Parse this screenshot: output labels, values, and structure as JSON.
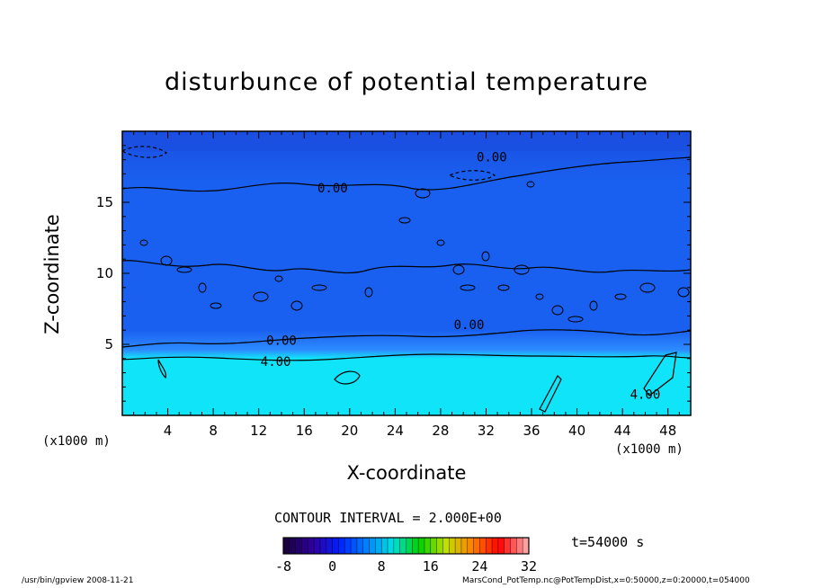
{
  "chart_data": {
    "type": "heatmap",
    "title": "disturbunce of potential temperature",
    "xlabel": "X-coordinate",
    "ylabel": "Z-coordinate",
    "x_unit_left": "(x1000 m)",
    "x_unit_right": "(x1000 m)",
    "xlim": [
      0,
      50
    ],
    "ylim": [
      0,
      20
    ],
    "x_ticks": [
      4,
      8,
      12,
      16,
      20,
      24,
      28,
      32,
      36,
      40,
      44,
      48
    ],
    "y_ticks": [
      5,
      10,
      15
    ],
    "contour_interval_text": "CONTOUR INTERVAL = 2.000E+00",
    "contour_labels": [
      {
        "text": "0.00",
        "x": 32.5,
        "z": 18.2
      },
      {
        "text": "0.00",
        "x": 18.5,
        "z": 16.0
      },
      {
        "text": "0.00",
        "x": 30.5,
        "z": 6.4
      },
      {
        "text": "0.00",
        "x": 14.0,
        "z": 5.3
      },
      {
        "text": "4.00",
        "x": 13.5,
        "z": 3.8
      },
      {
        "text": "4.00",
        "x": 46.0,
        "z": 1.5
      }
    ],
    "colorbar": {
      "min": -8,
      "max": 32,
      "tick_labels": [
        "-8",
        "0",
        "8",
        "16",
        "24",
        "32"
      ],
      "colors": [
        "#1a0040",
        "#3000a0",
        "#0020ff",
        "#0080ff",
        "#00e0e0",
        "#00d000",
        "#c0e000",
        "#ff8000",
        "#ff0000",
        "#ffa0a0"
      ]
    },
    "field_colors": {
      "upper_band": "#1a4ee0",
      "middle": "#1a60f0",
      "lower_layer": "#2d8cff",
      "near_surface": "#10e4f8"
    },
    "time_text": "t=54000 s"
  },
  "footer": {
    "left": "/usr/bin/gpview   2008-11-21",
    "right": "MarsCond_PotTemp.nc@PotTempDist,x=0:50000,z=0:20000,t=054000"
  }
}
